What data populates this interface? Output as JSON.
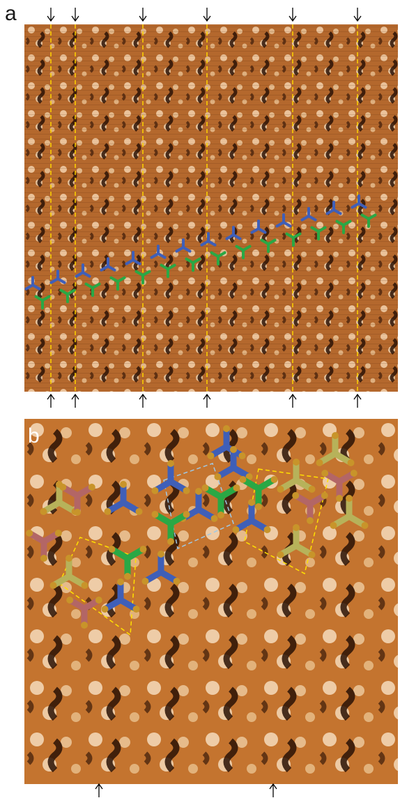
{
  "figure": {
    "panel_a": {
      "label": "a"
    },
    "panel_b": {
      "label": "b"
    }
  },
  "colors": {
    "background": "#ffffff",
    "stm_dark": "#2a1205",
    "stm_mid": "#b0642c",
    "stm_light": "#f3d6b2",
    "guide_line": "#ffd400",
    "arrow": "#000000",
    "molecule_blue": "#3f5fb8",
    "molecule_green": "#2aa845",
    "molecule_olive": "#b7b25a",
    "molecule_rose": "#b36666",
    "atom_gold": "#c8942a",
    "cell_yellow": "#ffe100",
    "cell_light_blue": "#9fc9e6"
  },
  "markers": {
    "panel_a_count_top": 6,
    "panel_a_count_bottom": 6,
    "panel_b_count_bottom": 2
  }
}
